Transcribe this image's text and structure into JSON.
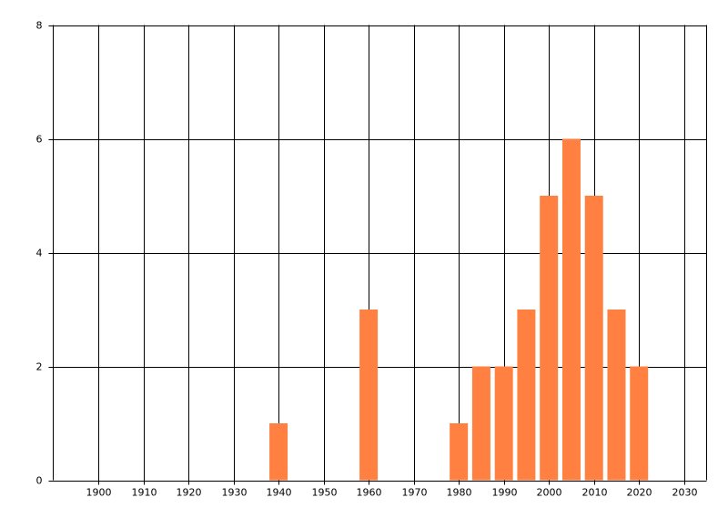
{
  "chart_data": {
    "type": "bar",
    "x": [
      1940,
      1960,
      1980,
      1985,
      1990,
      1995,
      2000,
      2005,
      2010,
      2015,
      2020
    ],
    "values": [
      1,
      3,
      1,
      2,
      2,
      3,
      5,
      6,
      5,
      3,
      2
    ],
    "color": "#ff8040",
    "xlim": [
      1890,
      2035
    ],
    "xticks": [
      1900,
      1910,
      1920,
      1930,
      1940,
      1950,
      1960,
      1970,
      1980,
      1990,
      2000,
      2010,
      2020,
      2030
    ],
    "ylim": [
      0,
      8
    ],
    "yticks": [
      0,
      2,
      4,
      6,
      8
    ],
    "grid": true
  }
}
